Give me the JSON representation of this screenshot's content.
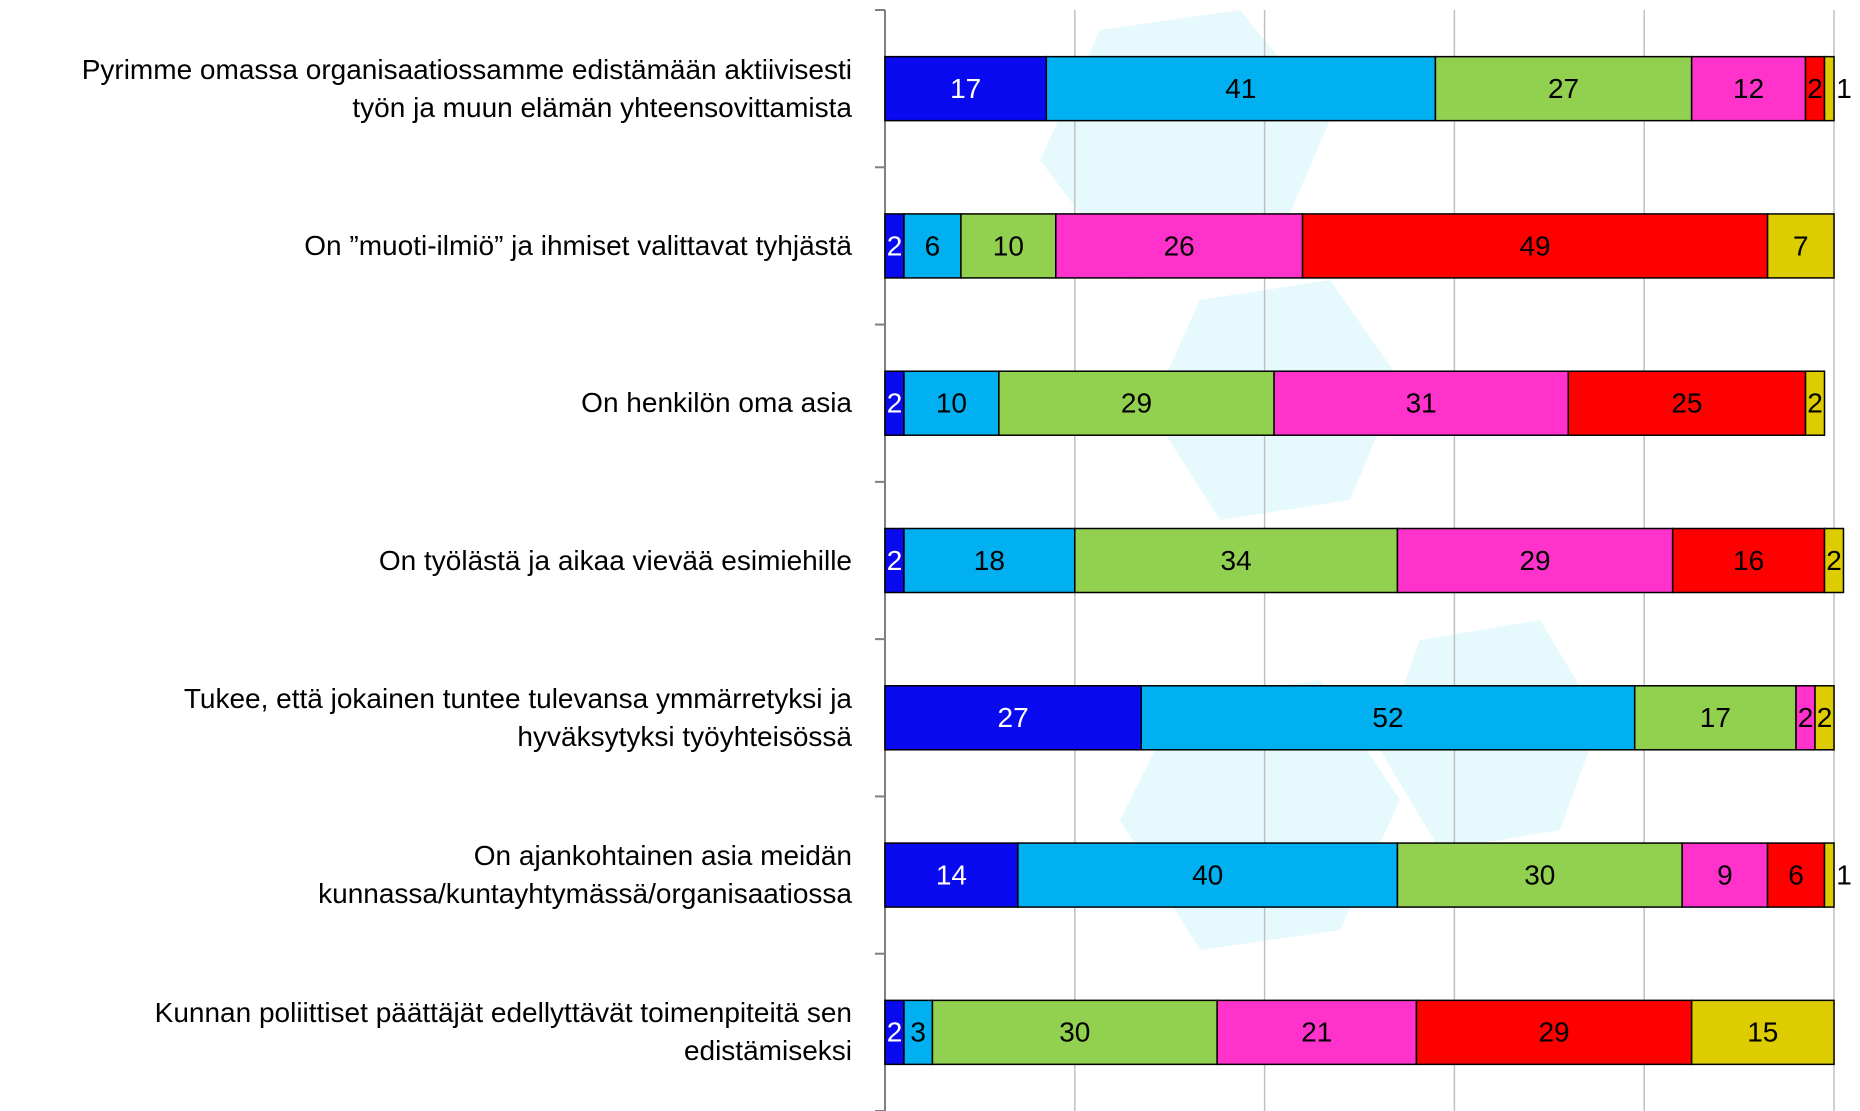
{
  "chart_data": {
    "type": "stacked-bar-horizontal",
    "categories": [
      "Pyrimme omassa organisaatiossamme edistämään aktiivisesti\ntyön ja muun elämän yhteensovittamista",
      "On ”muoti-ilmiö” ja ihmiset valittavat tyhjästä",
      "On henkilön oma asia",
      "On työlästä ja aikaa vievää esimiehille",
      "Tukee, että jokainen tuntee tulevansa ymmärretyksi ja\nhyväksytyksi työyhteisössä",
      "On ajankohtainen asia meidän\nkunnassa/kuntayhtymässä/organisaatiossa",
      "Kunnan poliittiset päättäjät edellyttävät toimenpiteitä sen\nedistämiseksi"
    ],
    "series": [
      {
        "color": "#0a0af0",
        "label_color": "#ffffff",
        "values": [
          17,
          2,
          2,
          2,
          27,
          14,
          2
        ]
      },
      {
        "color": "#00b0f0",
        "label_color": "#000000",
        "values": [
          41,
          6,
          10,
          18,
          52,
          40,
          3
        ]
      },
      {
        "color": "#92d050",
        "label_color": "#000000",
        "values": [
          27,
          10,
          29,
          34,
          17,
          30,
          30
        ]
      },
      {
        "color": "#ff33cc",
        "label_color": "#000000",
        "values": [
          12,
          26,
          31,
          29,
          2,
          9,
          21
        ]
      },
      {
        "color": "#ff0000",
        "label_color": "#000000",
        "values": [
          2,
          49,
          25,
          16,
          null,
          6,
          29
        ]
      },
      {
        "color": "#dccc00",
        "label_color": "#000000",
        "values": [
          1,
          7,
          2,
          2,
          2,
          1,
          15
        ]
      }
    ],
    "xlim": [
      0,
      100
    ],
    "xticks": [
      0,
      20,
      40,
      60,
      80,
      100
    ],
    "grid": true
  }
}
